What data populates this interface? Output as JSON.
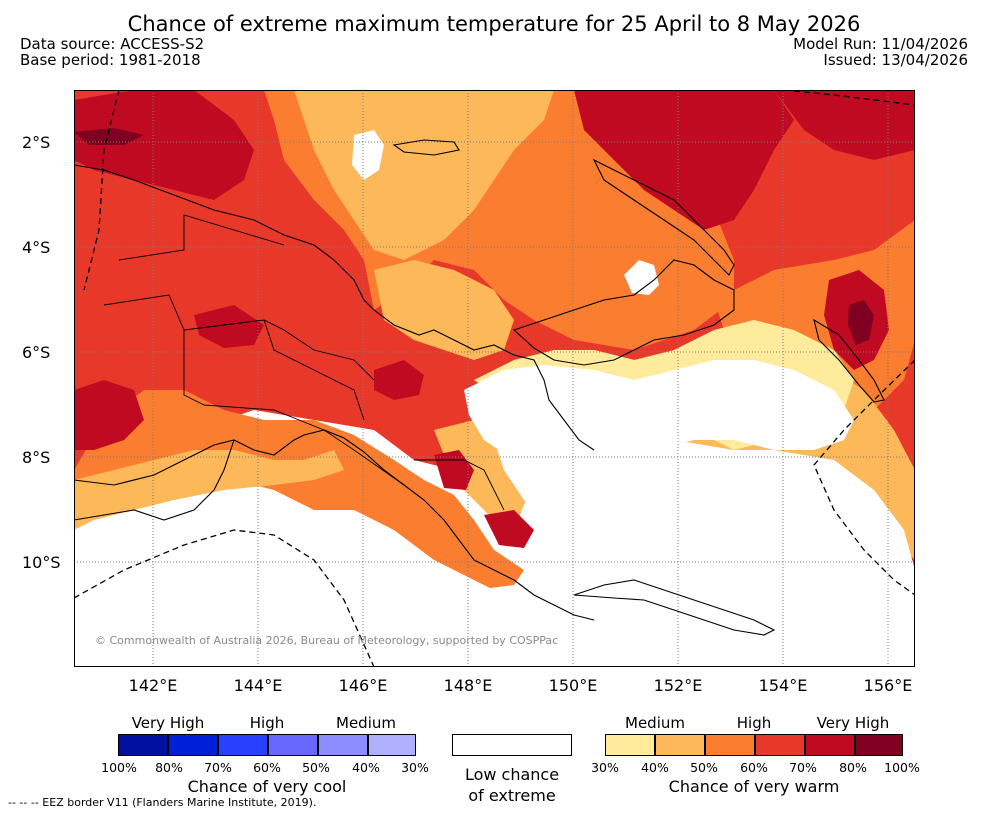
{
  "title": "Chance of extreme maximum temperature for 25 April to 8 May 2026",
  "data_source": "Data source: ACCESS-S2",
  "base_period": "Base period: 1981-2018",
  "model_run": "Model Run: 11/04/2026",
  "issued": "Issued: 13/04/2026",
  "lat_labels": [
    "2°S",
    "4°S",
    "6°S",
    "8°S",
    "10°S"
  ],
  "lon_labels": [
    "142°E",
    "144°E",
    "146°E",
    "148°E",
    "150°E",
    "152°E",
    "154°E",
    "156°E"
  ],
  "copyright": "© Commonwealth of Australia 2026, Bureau of Meteorology, supported by COSPPac",
  "colors": {
    "warm": [
      "#ffeb9b",
      "#fdb85a",
      "#fb7d30",
      "#e8382a",
      "#c00a22",
      "#7f0020"
    ],
    "cool": [
      "#0010a0",
      "#0020d8",
      "#2a40ff",
      "#6868ff",
      "#8c8cff",
      "#b0b0ff"
    ]
  },
  "legend": {
    "cool": {
      "levels": [
        "Very High",
        "High",
        "Medium"
      ],
      "ticks": [
        "100%",
        "80%",
        "70%",
        "60%",
        "50%",
        "40%",
        "30%"
      ],
      "caption": "Chance of very cool"
    },
    "neutral": {
      "caption_line1": "Low chance",
      "caption_line2": "of extreme"
    },
    "warm": {
      "levels": [
        "Medium",
        "High",
        "Very High"
      ],
      "ticks": [
        "30%",
        "40%",
        "50%",
        "60%",
        "70%",
        "80%",
        "100%"
      ],
      "caption": "Chance of very warm"
    }
  },
  "footnote": "-- -- -- EEZ border V11 (Flanders Marine Institute, 2019)."
}
